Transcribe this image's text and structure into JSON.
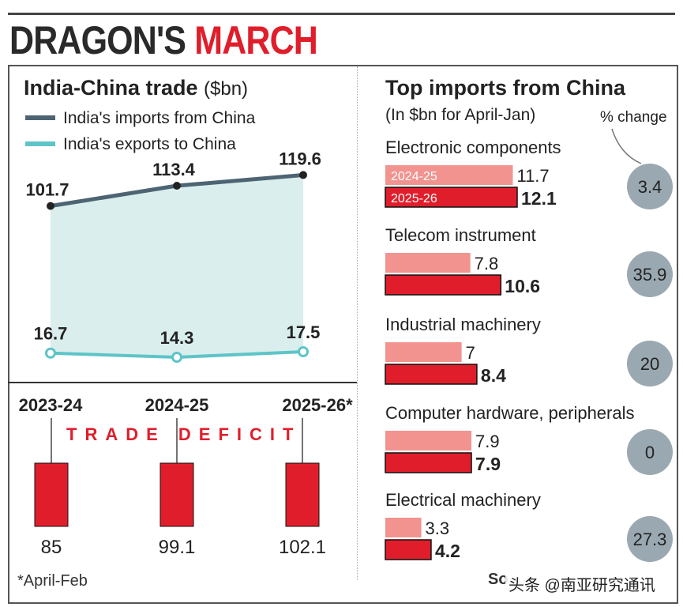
{
  "headline": {
    "part1": "DRAGON'S ",
    "part2": "MARCH"
  },
  "footnote": "*April-Feb",
  "source": "So",
  "watermark": "头条 @南亚研究通讯",
  "colors": {
    "accent": "#e01e2b",
    "imports_line": "#4d6472",
    "exports_line": "#5ec4c8",
    "area": "#d9eeed",
    "bar_light": "#f2938f",
    "bubble": "#9aa9b1"
  },
  "chart_data": [
    {
      "type": "line",
      "title": "India-China trade",
      "units": "($bn)",
      "categories": [
        "2023-24",
        "2024-25",
        "2025-26*"
      ],
      "ylim": [
        0,
        130
      ],
      "series": [
        {
          "name": "India's imports from China",
          "values": [
            101.7,
            113.4,
            119.6
          ]
        },
        {
          "name": "India's exports to China",
          "values": [
            16.7,
            14.3,
            17.5
          ]
        }
      ]
    },
    {
      "type": "bar",
      "title": "TRADE DEFICIT",
      "categories": [
        "2023-24",
        "2024-25",
        "2025-26*"
      ],
      "values": [
        85,
        99.1,
        102.1
      ]
    },
    {
      "type": "bar",
      "title": "Top imports from China",
      "subtitle": "(In $bn for April-Jan)",
      "change_label": "% change",
      "series_names": [
        "2024-25",
        "2025-26"
      ],
      "categories": [
        {
          "name": "Electronic components",
          "v2425": 11.7,
          "v2526": 12.1,
          "change": 3.4
        },
        {
          "name": "Telecom instrument",
          "v2425": 7.8,
          "v2526": 10.6,
          "change": 35.9
        },
        {
          "name": "Industrial machinery",
          "v2425": 7,
          "v2526": 8.4,
          "change": 20
        },
        {
          "name": "Computer hardware, peripherals",
          "v2425": 7.9,
          "v2526": 7.9,
          "change": 0
        },
        {
          "name": "Electrical machinery",
          "v2425": 3.3,
          "v2526": 4.2,
          "change": 27.3
        }
      ]
    }
  ]
}
